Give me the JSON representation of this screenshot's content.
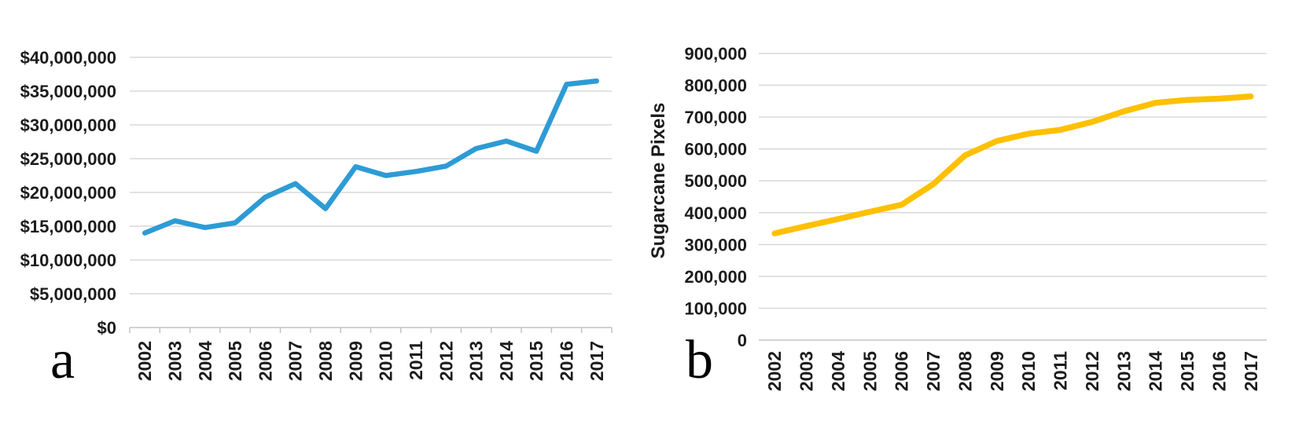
{
  "chart_data": [
    {
      "id": "a",
      "type": "line",
      "panel_label": "a",
      "title": "",
      "xlabel": "",
      "ylabel": "",
      "legend": "none",
      "grid": true,
      "line_color": "#2d9bd5",
      "line_width": 6.5,
      "categories": [
        "2002",
        "2003",
        "2004",
        "2005",
        "2006",
        "2007",
        "2008",
        "2009",
        "2010",
        "2011",
        "2012",
        "2013",
        "2014",
        "2015",
        "2016",
        "2017"
      ],
      "values": [
        14000000,
        15800000,
        14800000,
        15500000,
        19300000,
        21300000,
        17600000,
        23800000,
        22500000,
        23100000,
        23900000,
        26500000,
        27600000,
        26100000,
        36000000,
        36500000
      ],
      "ylim": [
        0,
        40000000
      ],
      "ytick_step": 5000000,
      "ytick_labels": [
        "$0",
        "$5,000,000",
        "$10,000,000",
        "$15,000,000",
        "$20,000,000",
        "$25,000,000",
        "$30,000,000",
        "$35,000,000",
        "$40,000,000"
      ]
    },
    {
      "id": "b",
      "type": "line",
      "panel_label": "b",
      "title": "",
      "xlabel": "",
      "ylabel": "Sugarcane Pixels",
      "legend": "none",
      "grid": true,
      "line_color": "#FFC000",
      "line_width": 7.5,
      "categories": [
        "2002",
        "2003",
        "2004",
        "2005",
        "2006",
        "2007",
        "2008",
        "2009",
        "2010",
        "2011",
        "2012",
        "2013",
        "2014",
        "2015",
        "2016",
        "2017"
      ],
      "values": [
        335000,
        358000,
        380000,
        403000,
        425000,
        490000,
        580000,
        625000,
        648000,
        660000,
        685000,
        718000,
        745000,
        754000,
        758000,
        765000
      ],
      "ylim": [
        0,
        900000
      ],
      "ytick_step": 100000,
      "ytick_labels": [
        "0",
        "100,000",
        "200,000",
        "300,000",
        "400,000",
        "500,000",
        "600,000",
        "700,000",
        "800,000",
        "900,000"
      ]
    }
  ],
  "colors": {
    "gridline": "#d9d9d9",
    "axis_line": "#c3c3c3",
    "tick_text": "#1c1c1c"
  }
}
